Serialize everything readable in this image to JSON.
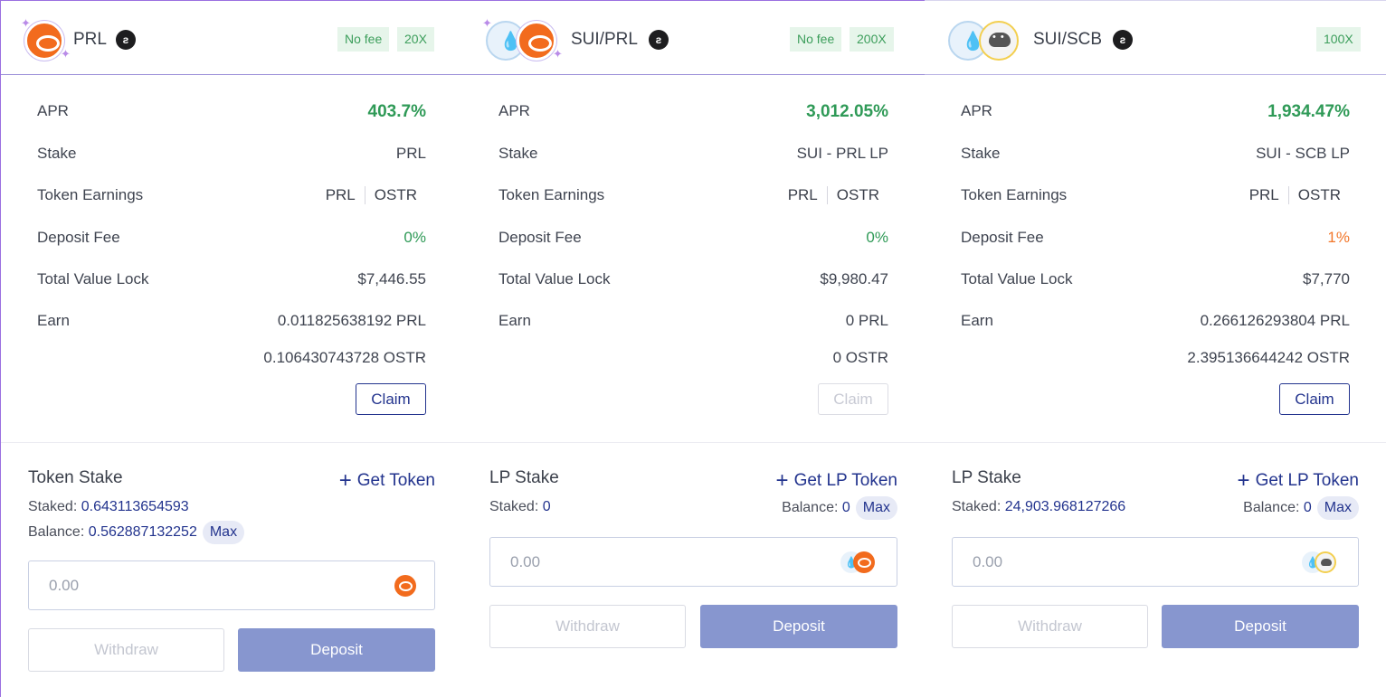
{
  "cards": [
    {
      "title": "PRL",
      "badges": [
        "No fee",
        "20X"
      ],
      "apr_label": "APR",
      "apr": "403.7%",
      "stake_label": "Stake",
      "stake": "PRL",
      "earn_tokens_label": "Token Earnings",
      "earn_tokens": [
        "PRL",
        "OSTR"
      ],
      "fee_label": "Deposit Fee",
      "fee": "0%",
      "tvl_label": "Total Value Lock",
      "tvl": "$7,446.55",
      "earn_label": "Earn",
      "earn": [
        "0.011825638192 PRL",
        "0.106430743728 OSTR"
      ],
      "claim": "Claim",
      "stake_title": "Token Stake",
      "get": "Get Token",
      "staked_label": "Staked:",
      "staked": "0.643113654593",
      "balance_label": "Balance:",
      "balance": "0.562887132252",
      "max": "Max",
      "placeholder": "0.00",
      "withdraw": "Withdraw",
      "deposit": "Deposit"
    },
    {
      "title": "SUI/PRL",
      "badges": [
        "No fee",
        "200X"
      ],
      "apr_label": "APR",
      "apr": "3,012.05%",
      "stake_label": "Stake",
      "stake": "SUI - PRL LP",
      "earn_tokens_label": "Token Earnings",
      "earn_tokens": [
        "PRL",
        "OSTR"
      ],
      "fee_label": "Deposit Fee",
      "fee": "0%",
      "tvl_label": "Total Value Lock",
      "tvl": "$9,980.47",
      "earn_label": "Earn",
      "earn": [
        "0 PRL",
        "0 OSTR"
      ],
      "claim": "Claim",
      "stake_title": "LP Stake",
      "get": "Get LP Token",
      "staked_label": "Staked:",
      "staked": "0",
      "balance_label": "Balance:",
      "balance": "0",
      "max": "Max",
      "placeholder": "0.00",
      "withdraw": "Withdraw",
      "deposit": "Deposit"
    },
    {
      "title": "SUI/SCB",
      "badges": [
        "100X"
      ],
      "apr_label": "APR",
      "apr": "1,934.47%",
      "stake_label": "Stake",
      "stake": "SUI - SCB LP",
      "earn_tokens_label": "Token Earnings",
      "earn_tokens": [
        "PRL",
        "OSTR"
      ],
      "fee_label": "Deposit Fee",
      "fee": "1%",
      "tvl_label": "Total Value Lock",
      "tvl": "$7,770",
      "earn_label": "Earn",
      "earn": [
        "0.266126293804 PRL",
        "2.395136644242 OSTR"
      ],
      "claim": "Claim",
      "stake_title": "LP Stake",
      "get": "Get LP Token",
      "staked_label": "Staked:",
      "staked": "24,903.968127266",
      "balance_label": "Balance:",
      "balance": "0",
      "max": "Max",
      "placeholder": "0.00",
      "withdraw": "Withdraw",
      "deposit": "Deposit"
    }
  ],
  "icons": {
    "prl": "prl-token-icon",
    "sui": "sui-token-icon",
    "scb": "scb-token-icon",
    "chain": "chain-icon",
    "plus": "plus-icon",
    "sparkle": "sparkle-icon"
  },
  "colors": {
    "accent": "#23348e",
    "positive": "#2f9a57",
    "warning": "#f2772b",
    "deposit_button": "#8796cf",
    "card_border": "#9b6fe0"
  }
}
